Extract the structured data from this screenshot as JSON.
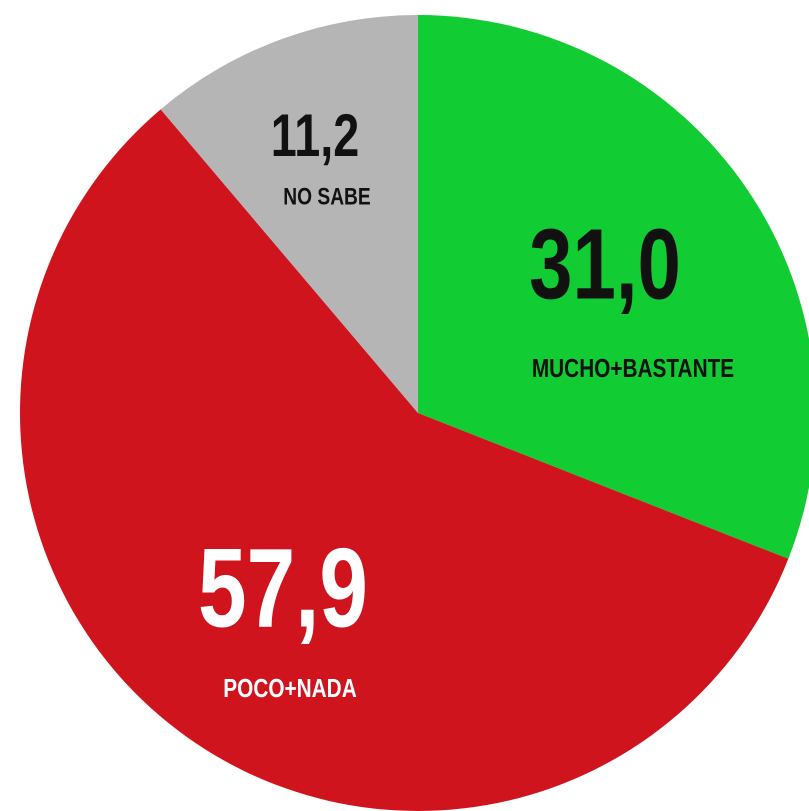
{
  "chart_data": {
    "type": "pie",
    "categories": [
      "MUCHO+BASTANTE",
      "POCO+NADA",
      "NO SABE"
    ],
    "values": [
      31.0,
      57.9,
      11.2
    ],
    "value_labels": [
      "31,0",
      "57,9",
      "11,2"
    ],
    "colors": [
      "#12cc33",
      "#d0141e",
      "#b5b5b5"
    ]
  }
}
